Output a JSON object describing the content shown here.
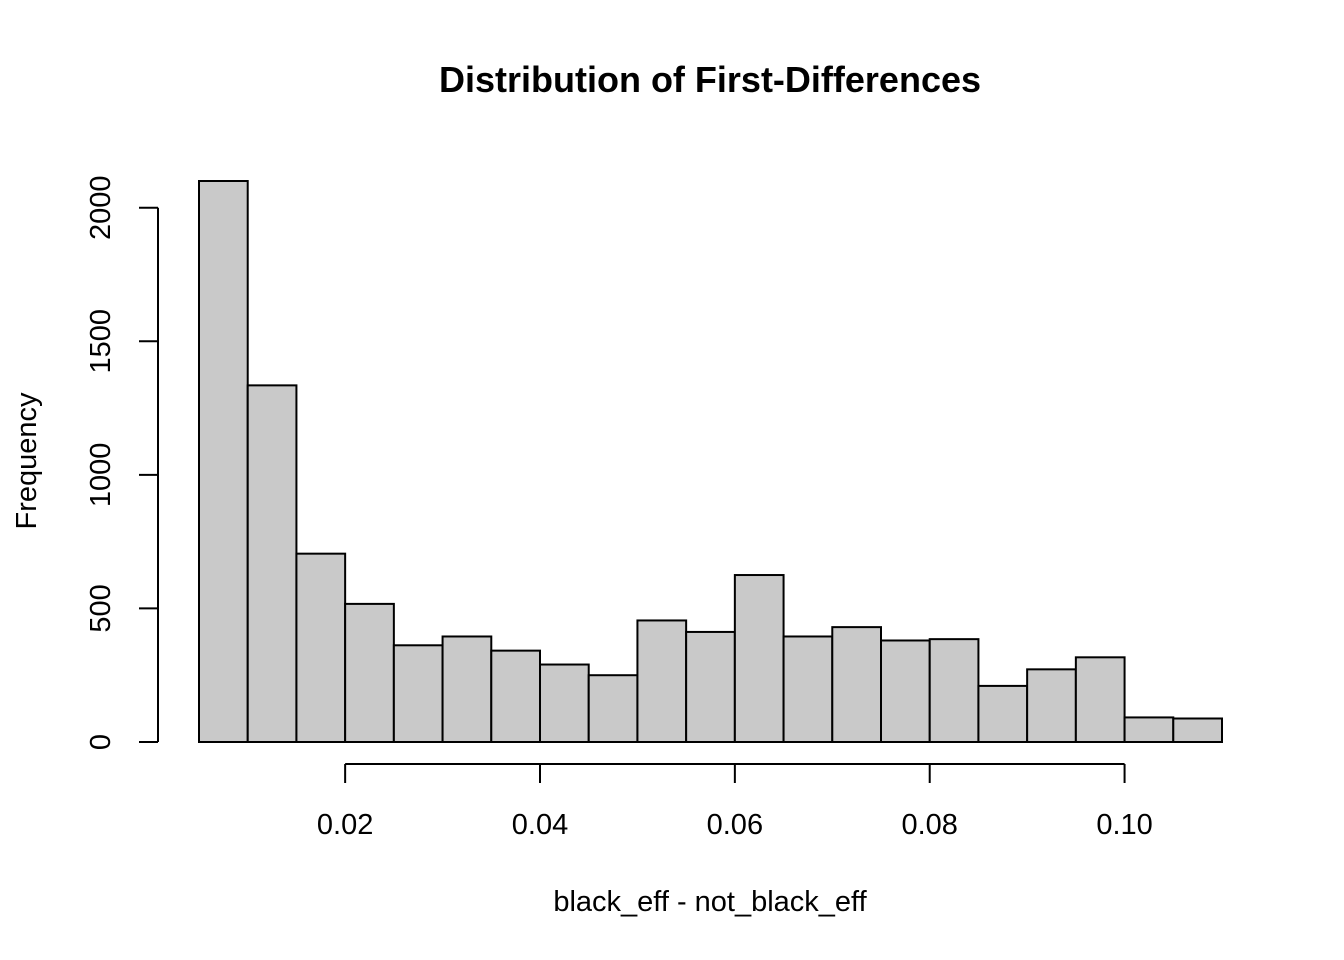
{
  "chart_data": {
    "type": "bar",
    "title": "Distribution of First-Differences",
    "xlabel": "black_eff - not_black_eff",
    "ylabel": "Frequency",
    "bin_width": 0.005,
    "x_start": 0.005,
    "values": [
      2100,
      1335,
      705,
      517,
      362,
      395,
      342,
      290,
      250,
      455,
      412,
      625,
      395,
      430,
      380,
      385,
      210,
      272,
      317,
      92,
      88
    ],
    "xlim": [
      0.005,
      0.11
    ],
    "ylim": [
      0,
      2100
    ],
    "x_ticks": [
      0.02,
      0.04,
      0.06,
      0.08,
      0.1
    ],
    "x_tick_labels": [
      "0.02",
      "0.04",
      "0.06",
      "0.08",
      "0.10"
    ],
    "y_ticks": [
      0,
      500,
      1000,
      1500,
      2000
    ],
    "y_tick_labels": [
      "0",
      "500",
      "1000",
      "1500",
      "2000"
    ],
    "bar_color": "#c9c9c9",
    "grid": false
  }
}
